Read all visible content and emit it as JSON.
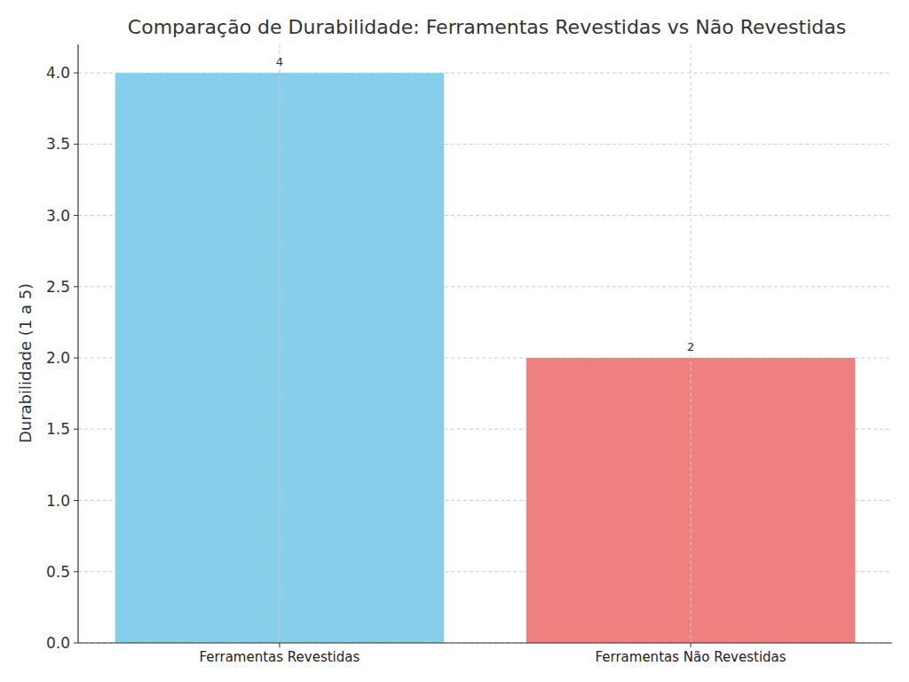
{
  "chart_data": {
    "type": "bar",
    "title": "Comparação de Durabilidade: Ferramentas Revestidas vs Não Revestidas",
    "y_label": "Durabilidade (1 a 5)",
    "categories": [
      "Ferramentas Revestidas",
      "Ferramentas Não Revestidas"
    ],
    "values": [
      4,
      2
    ],
    "colors": [
      "#87ceeb",
      "#f08080"
    ],
    "ylim": [
      0,
      4.2
    ],
    "yticks": [
      {
        "value": 0,
        "label": "0.0"
      },
      0.5,
      {
        "value": 1,
        "label": "1.0"
      },
      1.5,
      {
        "value": 2,
        "label": "2.0"
      },
      2.5,
      {
        "value": 3,
        "label": "3.0"
      },
      3.5,
      {
        "value": 4,
        "label": "4.0"
      }
    ],
    "grid": true,
    "data_labels": true
  }
}
